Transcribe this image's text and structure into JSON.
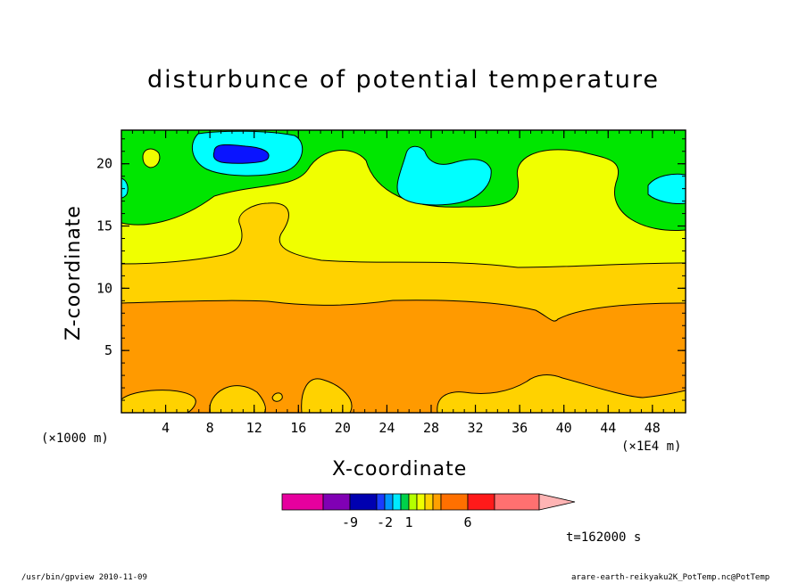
{
  "chart_data": {
    "type": "heatmap",
    "title": "disturbunce of potential temperature",
    "xlabel": "X-coordinate",
    "ylabel": "Z-coordinate",
    "x_unit_note": "(×1000 m)",
    "x_scale_note": "(×1E4 m)",
    "xlim": [
      0,
      51
    ],
    "ylim": [
      0,
      22.7
    ],
    "x_ticks": [
      4,
      8,
      12,
      16,
      20,
      24,
      28,
      32,
      36,
      40,
      44,
      48
    ],
    "y_ticks": [
      5,
      10,
      15,
      20
    ],
    "colorbar": {
      "colors": [
        "#e6009e",
        "#8000b4",
        "#0000b0",
        "#1a3cff",
        "#0096ff",
        "#00eaff",
        "#00d24a",
        "#b4ff00",
        "#f0ff00",
        "#ffd200",
        "#ffa000",
        "#ff7000",
        "#ff1a1a",
        "#ff7070",
        "#ffb4b4"
      ],
      "tick_labels": [
        "-9",
        "-2",
        "1",
        "6"
      ]
    },
    "regions": [
      {
        "level": "cyan",
        "color": "#00ffff"
      },
      {
        "level": "blue",
        "color": "#0a14ff"
      },
      {
        "level": "green",
        "color": "#00e600"
      },
      {
        "level": "yellow",
        "color": "#f0ff00"
      },
      {
        "level": "light-orange",
        "color": "#ffd200"
      },
      {
        "level": "orange",
        "color": "#ff9a00"
      }
    ]
  },
  "annotations": {
    "time": "t=162000 s",
    "footer_left": "/usr/bin/gpview  2010-11-09",
    "footer_right": "arare-earth-reikyaku2K_PotTemp.nc@PotTemp"
  }
}
